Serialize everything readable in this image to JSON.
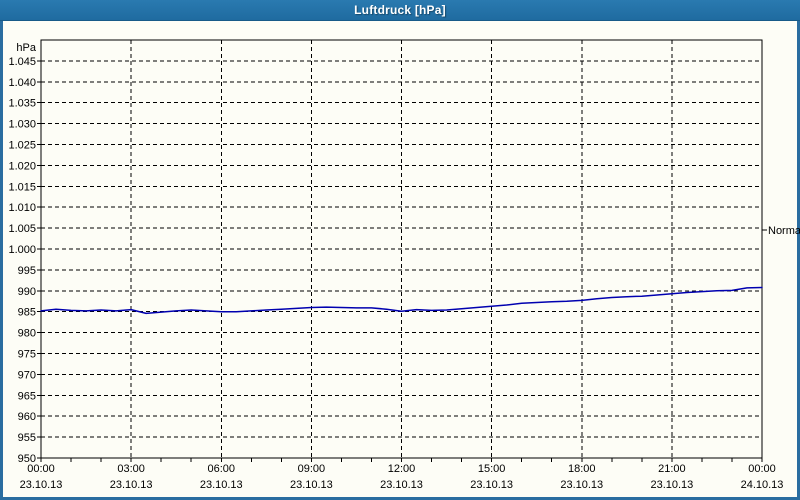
{
  "window": {
    "title": "Luftdruck [hPa]"
  },
  "colors": {
    "frame_blue": "#2a6da0",
    "titlebar_blue": "#2173a6",
    "background": "#fdfdf6",
    "series_blue": "#0000b0",
    "grid_black": "#000000"
  },
  "chart_data": {
    "type": "line",
    "title": "Luftdruck [hPa]",
    "unit_label": "hPa",
    "xlim_hours": [
      0,
      24
    ],
    "ylim": [
      950,
      1050
    ],
    "grid": "dashed",
    "legend_position": "none",
    "y_ticks": [
      {
        "value": 1045,
        "label": "1.045"
      },
      {
        "value": 1040,
        "label": "1.040"
      },
      {
        "value": 1035,
        "label": "1.035"
      },
      {
        "value": 1030,
        "label": "1.030"
      },
      {
        "value": 1025,
        "label": "1.025"
      },
      {
        "value": 1020,
        "label": "1.020"
      },
      {
        "value": 1015,
        "label": "1.015"
      },
      {
        "value": 1010,
        "label": "1.010"
      },
      {
        "value": 1005,
        "label": "1.005"
      },
      {
        "value": 1000,
        "label": "1.000"
      },
      {
        "value": 995,
        "label": "995"
      },
      {
        "value": 990,
        "label": "990"
      },
      {
        "value": 985,
        "label": "985"
      },
      {
        "value": 980,
        "label": "980"
      },
      {
        "value": 975,
        "label": "975"
      },
      {
        "value": 970,
        "label": "970"
      },
      {
        "value": 965,
        "label": "965"
      },
      {
        "value": 960,
        "label": "960"
      },
      {
        "value": 955,
        "label": "955"
      },
      {
        "value": 950,
        "label": "950"
      }
    ],
    "x_ticks": [
      {
        "hours": 0,
        "time": "00:00",
        "date": "23.10.13"
      },
      {
        "hours": 3,
        "time": "03:00",
        "date": "23.10.13"
      },
      {
        "hours": 6,
        "time": "06:00",
        "date": "23.10.13"
      },
      {
        "hours": 9,
        "time": "09:00",
        "date": "23.10.13"
      },
      {
        "hours": 12,
        "time": "12:00",
        "date": "23.10.13"
      },
      {
        "hours": 15,
        "time": "15:00",
        "date": "23.10.13"
      },
      {
        "hours": 18,
        "time": "18:00",
        "date": "23.10.13"
      },
      {
        "hours": 21,
        "time": "21:00",
        "date": "23.10.13"
      },
      {
        "hours": 24,
        "time": "00:00",
        "date": "24.10.13"
      }
    ],
    "x_minor_tick_every_hours": 1,
    "annotation": {
      "label": "Normal",
      "value": 1005
    },
    "series": [
      {
        "name": "Luftdruck",
        "color": "#0000b0",
        "x_hours": [
          0,
          0.5,
          1,
          1.5,
          2,
          2.5,
          3,
          3.5,
          4,
          4.5,
          5,
          5.5,
          6,
          6.5,
          7,
          7.5,
          8,
          8.5,
          9,
          9.5,
          10,
          10.5,
          11,
          11.5,
          12,
          12.5,
          13,
          13.5,
          14,
          14.5,
          15,
          15.5,
          16,
          16.5,
          17,
          17.5,
          18,
          18.5,
          19,
          19.5,
          20,
          20.5,
          21,
          21.5,
          22,
          22.5,
          23,
          23.5,
          24
        ],
        "values": [
          985.2,
          985.6,
          985.3,
          985.2,
          985.4,
          985.2,
          985.5,
          984.6,
          984.9,
          985.2,
          985.4,
          985.2,
          985.0,
          985.0,
          985.2,
          985.4,
          985.6,
          985.8,
          986.0,
          986.1,
          986.0,
          985.9,
          985.9,
          985.6,
          985.1,
          985.5,
          985.3,
          985.4,
          985.7,
          986.0,
          986.3,
          986.6,
          987.0,
          987.2,
          987.4,
          987.5,
          987.7,
          988.1,
          988.4,
          988.6,
          988.7,
          989.0,
          989.3,
          989.6,
          989.8,
          990.0,
          990.1,
          990.7,
          990.8
        ]
      }
    ]
  }
}
